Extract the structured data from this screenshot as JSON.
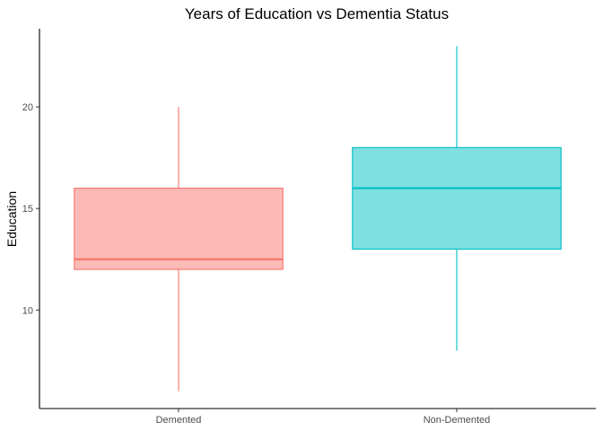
{
  "chart_data": {
    "type": "boxplot",
    "title": "Years of Education vs Dementia Status",
    "xlabel": "",
    "ylabel": "Education",
    "categories": [
      "Demented",
      "Non-Demented"
    ],
    "boxes": [
      {
        "category": "Demented",
        "min": 6,
        "q1": 12,
        "median": 12.5,
        "q3": 16,
        "max": 20,
        "color": "#F8766D",
        "fill": "#F8766D"
      },
      {
        "category": "Non-Demented",
        "min": 8,
        "q1": 13,
        "median": 16,
        "q3": 18,
        "max": 23,
        "color": "#00BFC4",
        "fill": "#00BFC4"
      }
    ],
    "y_ticks": [
      10,
      15,
      20
    ],
    "ylim": [
      5.15,
      23.85
    ],
    "grid": false,
    "legend": "none"
  }
}
